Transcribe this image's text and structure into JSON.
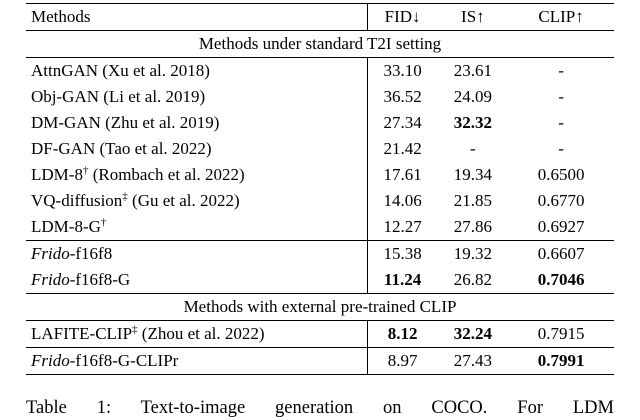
{
  "header": {
    "method_label": "Methods",
    "metric_labels": [
      "FID↓",
      "IS↑",
      "CLIP↑"
    ]
  },
  "sections": [
    {
      "title": "Methods under standard T2I setting",
      "groups": [
        {
          "rows": [
            {
              "method": [
                {
                  "t": "AttnGAN (Xu et al. 2018)"
                }
              ],
              "cells": [
                {
                  "t": "33.10"
                },
                {
                  "t": "23.61"
                },
                {
                  "t": "-"
                }
              ]
            },
            {
              "method": [
                {
                  "t": "Obj-GAN (Li et al. 2019)"
                }
              ],
              "cells": [
                {
                  "t": "36.52"
                },
                {
                  "t": "24.09"
                },
                {
                  "t": "-"
                }
              ]
            },
            {
              "method": [
                {
                  "t": "DM-GAN (Zhu et al. 2019)"
                }
              ],
              "cells": [
                {
                  "t": "27.34"
                },
                {
                  "t": "32.32",
                  "b": true
                },
                {
                  "t": "-"
                }
              ]
            },
            {
              "method": [
                {
                  "t": "DF-GAN (Tao et al. 2022)"
                }
              ],
              "cells": [
                {
                  "t": "21.42"
                },
                {
                  "t": "-"
                },
                {
                  "t": "-"
                }
              ]
            },
            {
              "method": [
                {
                  "t": "LDM-8"
                },
                {
                  "t": "†",
                  "sup": true
                },
                {
                  "t": " (Rombach et al. 2022)"
                }
              ],
              "cells": [
                {
                  "t": "17.61"
                },
                {
                  "t": "19.34"
                },
                {
                  "t": "0.6500"
                }
              ]
            },
            {
              "method": [
                {
                  "t": "VQ-diffusion"
                },
                {
                  "t": "‡",
                  "sup": true
                },
                {
                  "t": " (Gu et al. 2022)"
                }
              ],
              "cells": [
                {
                  "t": "14.06"
                },
                {
                  "t": "21.85"
                },
                {
                  "t": "0.6770"
                }
              ]
            },
            {
              "method": [
                {
                  "t": "LDM-8-G"
                },
                {
                  "t": "†",
                  "sup": true
                }
              ],
              "cells": [
                {
                  "t": "12.27"
                },
                {
                  "t": "27.86"
                },
                {
                  "t": "0.6927"
                }
              ]
            }
          ]
        },
        {
          "rows": [
            {
              "method": [
                {
                  "t": "Frido",
                  "i": true
                },
                {
                  "t": "-f16f8"
                }
              ],
              "cells": [
                {
                  "t": "15.38"
                },
                {
                  "t": "19.32"
                },
                {
                  "t": "0.6607"
                }
              ]
            },
            {
              "method": [
                {
                  "t": "Frido",
                  "i": true
                },
                {
                  "t": "-f16f8-G"
                }
              ],
              "cells": [
                {
                  "t": "11.24",
                  "b": true
                },
                {
                  "t": "26.82"
                },
                {
                  "t": "0.7046",
                  "b": true
                }
              ]
            }
          ]
        }
      ]
    },
    {
      "title": "Methods with external pre-trained CLIP",
      "groups": [
        {
          "rows": [
            {
              "method": [
                {
                  "t": "LAFITE-CLIP"
                },
                {
                  "t": "‡",
                  "sup": true
                },
                {
                  "t": " (Zhou et al. 2022)"
                }
              ],
              "cells": [
                {
                  "t": "8.12",
                  "b": true
                },
                {
                  "t": "32.24",
                  "b": true
                },
                {
                  "t": "0.7915"
                }
              ]
            }
          ]
        },
        {
          "rows": [
            {
              "method": [
                {
                  "t": "Frido",
                  "i": true
                },
                {
                  "t": "-f16f8-G-CLIPr"
                }
              ],
              "cells": [
                {
                  "t": "8.97"
                },
                {
                  "t": "27.43"
                },
                {
                  "t": "0.7991",
                  "b": true
                }
              ]
            }
          ]
        }
      ]
    }
  ],
  "caption": "Table 1: Text-to-image generation on COCO. For LDM"
}
